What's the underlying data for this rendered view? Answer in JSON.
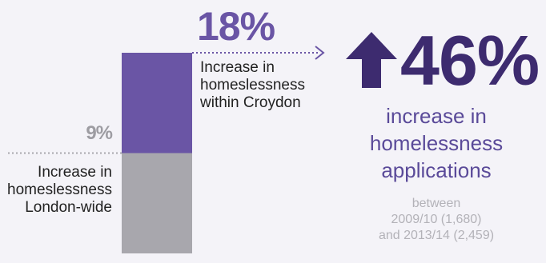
{
  "chart_data": {
    "type": "bar",
    "title": "",
    "series": [
      {
        "name": "Increase in homeslessness London-wide",
        "value": 9,
        "label": "9%",
        "color": "#a8a7ad"
      },
      {
        "name": "Increase in homeslessness within Croydon",
        "value": 18,
        "label": "18%",
        "color": "#6a55a5"
      }
    ],
    "ylim": [
      0,
      18
    ]
  },
  "croydon": {
    "pct": "18%",
    "label_lines": [
      "Increase in",
      "homeslessness",
      "within Croydon"
    ]
  },
  "london": {
    "pct": "9%",
    "label_lines": [
      "Increase in",
      "homeslessness",
      "London-wide"
    ]
  },
  "headline": {
    "pct": "46%",
    "icon": "up-arrow-icon",
    "desc_lines": [
      "increase in",
      "homelessness",
      "applications"
    ],
    "range_lines": [
      "between",
      "2009/10 (1,680)",
      "and 2013/14 (2,459)"
    ]
  },
  "colors": {
    "accent": "#6a55a5",
    "dark_purple": "#3d2b6f",
    "grey_bar": "#a8a7ad",
    "background": "#f4f3f8"
  }
}
